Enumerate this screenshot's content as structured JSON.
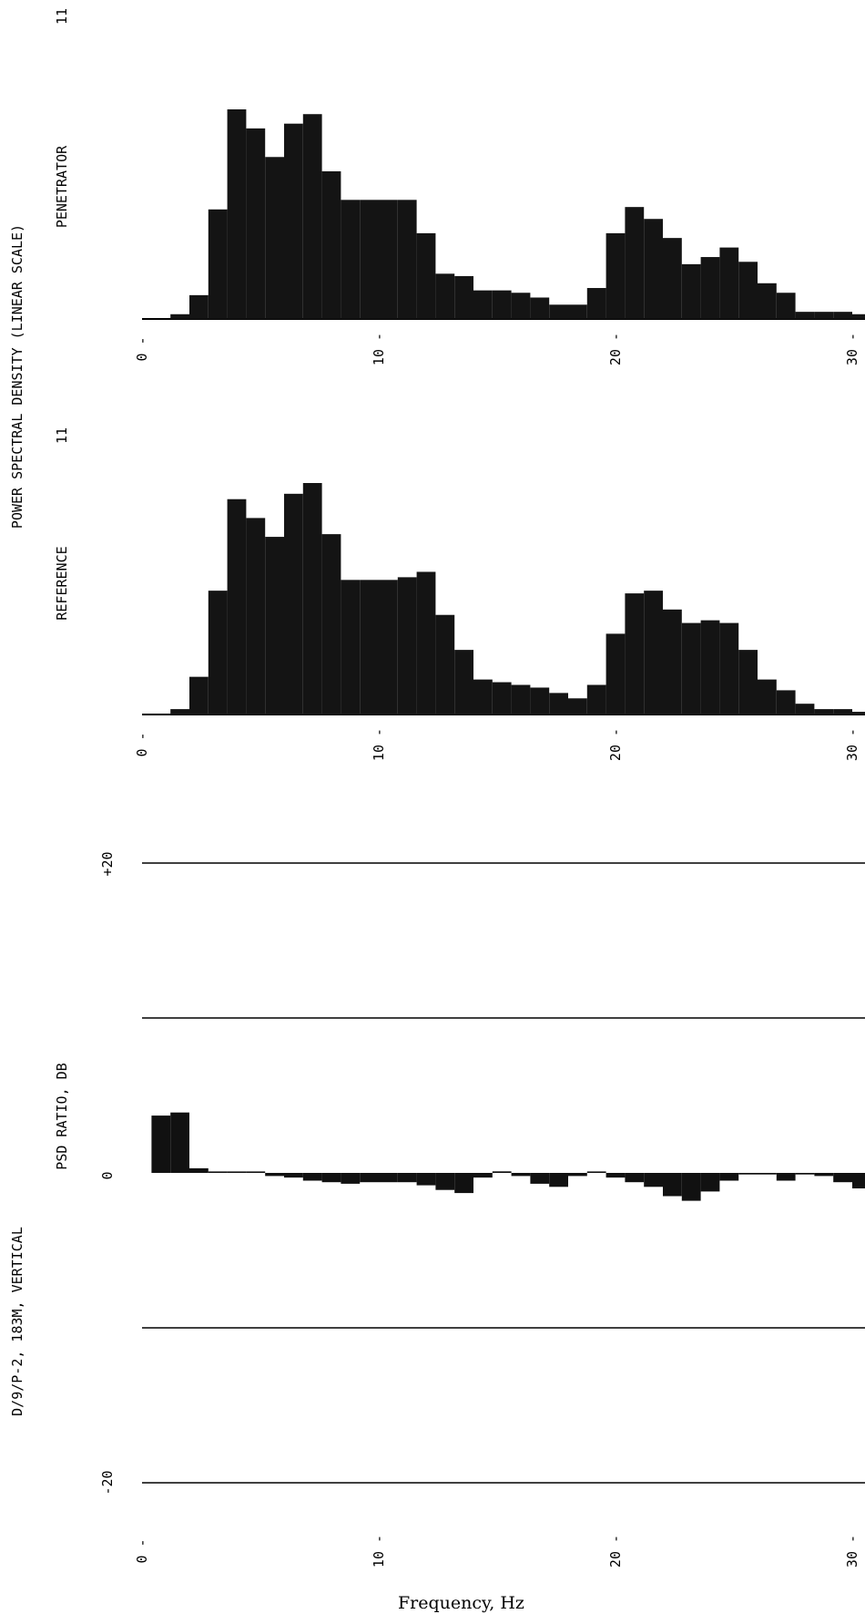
{
  "figure": {
    "title": "POWER SPECTRAL DENSITY (LINEAR SCALE)",
    "subtitle": "D/9/P-2, 183M, VERTICAL",
    "page_marks": [
      "11",
      "11"
    ],
    "xlabel": "Frequency, Hz"
  },
  "chart_data": [
    {
      "type": "bar",
      "title": "PENETRATOR",
      "xlabel": "Frequency, Hz",
      "ylabel": "",
      "xlim": [
        0,
        31
      ],
      "xticks": [
        "0",
        "10",
        "20",
        "30"
      ],
      "bin_width_hz": 0.8,
      "x": [
        1.6,
        2.4,
        3.2,
        4.0,
        4.8,
        5.6,
        6.4,
        7.2,
        8.0,
        8.8,
        9.6,
        10.4,
        11.2,
        12.0,
        12.8,
        13.6,
        14.4,
        15.2,
        16.0,
        16.8,
        17.6,
        18.4,
        19.2,
        20.0,
        20.8,
        21.6,
        22.4,
        23.2,
        24.0,
        24.8,
        25.6,
        26.4,
        27.2,
        28.0,
        28.8,
        29.6,
        30.4
      ],
      "values": [
        2,
        10,
        46,
        88,
        80,
        68,
        82,
        86,
        62,
        50,
        50,
        50,
        50,
        36,
        19,
        18,
        12,
        12,
        11,
        9,
        6,
        6,
        13,
        36,
        47,
        42,
        34,
        23,
        26,
        30,
        24,
        15,
        11,
        3,
        3,
        3,
        2
      ]
    },
    {
      "type": "bar",
      "title": "REFERENCE",
      "xlabel": "Frequency, Hz",
      "ylabel": "",
      "xlim": [
        0,
        31
      ],
      "xticks": [
        "0",
        "10",
        "20",
        "30"
      ],
      "bin_width_hz": 0.8,
      "x": [
        1.6,
        2.4,
        3.2,
        4.0,
        4.8,
        5.6,
        6.4,
        7.2,
        8.0,
        8.8,
        9.6,
        10.4,
        11.2,
        12.0,
        12.8,
        13.6,
        14.4,
        15.2,
        16.0,
        16.8,
        17.6,
        18.4,
        19.2,
        20.0,
        20.8,
        21.6,
        22.4,
        23.2,
        24.0,
        24.8,
        25.6,
        26.4,
        27.2,
        28.0,
        28.8,
        29.6,
        30.4
      ],
      "values": [
        2,
        14,
        46,
        80,
        73,
        66,
        82,
        86,
        67,
        50,
        50,
        50,
        51,
        53,
        37,
        24,
        13,
        12,
        11,
        10,
        8,
        6,
        11,
        30,
        45,
        46,
        39,
        34,
        35,
        34,
        24,
        13,
        9,
        4,
        2,
        2,
        1
      ]
    },
    {
      "type": "bar",
      "title": "PSD RATIO, DB",
      "xlabel": "Frequency, Hz",
      "ylabel": "PSD RATIO, DB",
      "xlim": [
        0,
        31
      ],
      "ylim": [
        -20,
        20
      ],
      "yticks": [
        "+20",
        "0",
        "-20"
      ],
      "xticks": [
        "0",
        "10",
        "20",
        "30"
      ],
      "grid": true,
      "gridlines_db": [
        20,
        10,
        -10,
        -20
      ],
      "bin_width_hz": 0.8,
      "x": [
        0.8,
        1.6,
        2.4,
        3.2,
        4.0,
        4.8,
        5.6,
        6.4,
        7.2,
        8.0,
        8.8,
        9.6,
        10.4,
        11.2,
        12.0,
        12.8,
        13.6,
        14.4,
        15.2,
        16.0,
        16.8,
        17.6,
        18.4,
        19.2,
        20.0,
        20.8,
        21.6,
        22.4,
        23.2,
        24.0,
        24.8,
        25.6,
        26.4,
        27.2,
        28.0,
        28.8,
        29.6,
        30.4
      ],
      "values": [
        3.7,
        3.9,
        0.3,
        0,
        0,
        0,
        -0.2,
        -0.3,
        -0.5,
        -0.6,
        -0.7,
        -0.6,
        -0.6,
        -0.6,
        -0.8,
        -1.1,
        -1.3,
        -0.3,
        0.1,
        -0.2,
        -0.7,
        -0.9,
        -0.2,
        0,
        -0.3,
        -0.6,
        -0.9,
        -1.5,
        -1.8,
        -1.2,
        -0.5,
        -0.1,
        -0.1,
        -0.5,
        -0.1,
        -0.2,
        -0.6,
        -1.0
      ]
    }
  ]
}
